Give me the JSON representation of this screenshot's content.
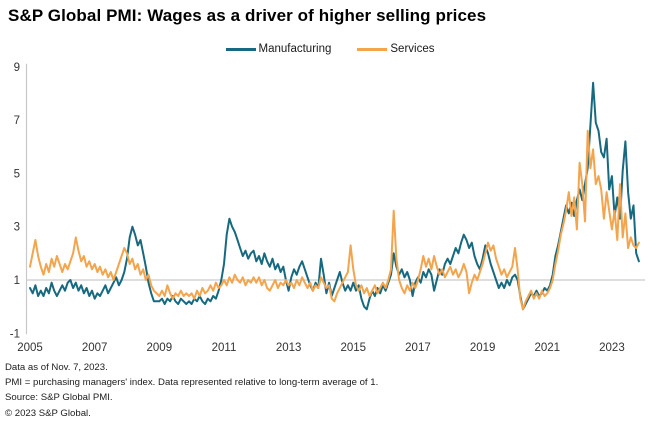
{
  "title": "S&P Global PMI: Wages as a driver of higher selling prices",
  "footnotes": [
    "Data as of Nov. 7, 2023.",
    "PMI =  purchasing managers' index. Data represented relative to long-term average of 1.",
    "Source: S&P Global PMI.",
    "© 2023 S&P Global."
  ],
  "colors": {
    "manufacturing": "#176980",
    "services": "#f4a44d",
    "grid": "#c9c9c9",
    "axis": "#c9c9c9",
    "tick_text": "#333333",
    "title_text": "#000000"
  },
  "chart_data": {
    "type": "line",
    "title": "S&P Global PMI: Wages as a driver of higher selling prices",
    "xlabel": "",
    "ylabel": "",
    "frequency": "monthly",
    "x_start": {
      "year": 2005,
      "month": 1
    },
    "x_end": {
      "year": 2023,
      "month": 11
    },
    "xticks": [
      2005,
      2007,
      2009,
      2011,
      2013,
      2015,
      2017,
      2019,
      2021,
      2023
    ],
    "yticks": [
      -1,
      1,
      3,
      5,
      7,
      9
    ],
    "ylim": [
      -1,
      9
    ],
    "grid": "single horizontal reference line at y = 1 (long-term average)",
    "reference_line_y": 1,
    "legend_position": "top-center",
    "series": [
      {
        "name": "Manufacturing",
        "color": "#176980",
        "values": [
          0.7,
          0.5,
          0.8,
          0.4,
          0.6,
          0.4,
          0.7,
          0.5,
          0.9,
          0.6,
          0.4,
          0.6,
          0.8,
          0.6,
          0.9,
          1.0,
          0.7,
          0.9,
          0.6,
          0.8,
          0.5,
          0.7,
          0.4,
          0.6,
          0.3,
          0.5,
          0.4,
          0.6,
          0.8,
          0.5,
          0.7,
          0.9,
          1.1,
          0.8,
          1.0,
          1.3,
          1.8,
          2.6,
          3.0,
          2.7,
          2.3,
          2.5,
          2.0,
          1.5,
          0.9,
          0.5,
          0.2,
          0.2,
          0.2,
          0.3,
          0.1,
          0.3,
          0.2,
          0.4,
          0.2,
          0.1,
          0.3,
          0.2,
          0.1,
          0.2,
          0.1,
          0.3,
          0.2,
          0.4,
          0.2,
          0.1,
          0.3,
          0.2,
          0.4,
          0.3,
          0.6,
          1.0,
          1.6,
          2.7,
          3.3,
          3.0,
          2.8,
          2.5,
          2.2,
          1.9,
          2.1,
          1.8,
          2.0,
          2.1,
          1.7,
          1.9,
          1.6,
          2.0,
          1.7,
          1.5,
          1.8,
          1.4,
          1.6,
          1.3,
          1.5,
          1.0,
          0.6,
          1.1,
          1.4,
          1.2,
          1.5,
          1.7,
          1.4,
          1.1,
          0.8,
          0.6,
          0.9,
          0.7,
          1.8,
          1.2,
          0.5,
          0.9,
          0.4,
          0.7,
          1.0,
          1.3,
          0.9,
          0.6,
          0.8,
          0.6,
          0.9,
          0.6,
          0.8,
          0.3,
          0.0,
          -0.1,
          0.3,
          0.6,
          0.4,
          0.7,
          0.5,
          0.8,
          0.6,
          0.9,
          1.2,
          2.0,
          1.5,
          1.2,
          1.4,
          1.1,
          1.3,
          1.0,
          0.4,
          0.9,
          1.1,
          0.9,
          1.3,
          1.1,
          1.4,
          1.2,
          0.6,
          1.0,
          1.4,
          1.2,
          1.6,
          1.8,
          1.6,
          1.9,
          2.2,
          2.0,
          2.4,
          2.7,
          2.5,
          2.2,
          2.4,
          1.9,
          1.6,
          1.4,
          1.8,
          2.3,
          2.0,
          1.6,
          1.3,
          1.0,
          0.7,
          0.9,
          0.7,
          1.0,
          0.8,
          1.1,
          1.2,
          1.0,
          0.4,
          -0.1,
          0.1,
          0.3,
          0.5,
          0.4,
          0.6,
          0.4,
          0.5,
          0.7,
          0.6,
          0.8,
          1.2,
          1.9,
          2.3,
          2.8,
          3.3,
          3.8,
          3.5,
          3.9,
          3.4,
          4.0,
          4.4,
          4.0,
          4.6,
          5.2,
          6.8,
          8.4,
          6.9,
          6.6,
          5.8,
          5.6,
          6.3,
          4.4,
          4.9,
          3.4,
          4.1,
          3.3,
          5.1,
          6.2,
          4.3,
          3.3,
          3.8,
          2.0,
          1.7
        ]
      },
      {
        "name": "Services",
        "color": "#f4a44d",
        "values": [
          1.5,
          2.0,
          2.5,
          1.9,
          1.5,
          1.2,
          1.6,
          1.3,
          1.8,
          1.5,
          1.9,
          1.6,
          1.3,
          1.6,
          1.4,
          1.7,
          2.0,
          2.6,
          2.1,
          1.7,
          1.9,
          1.5,
          1.7,
          1.4,
          1.6,
          1.3,
          1.5,
          1.2,
          1.4,
          1.1,
          1.3,
          1.0,
          1.3,
          1.6,
          1.9,
          2.2,
          2.0,
          1.6,
          1.8,
          1.4,
          1.6,
          1.2,
          1.4,
          1.0,
          1.2,
          0.8,
          0.6,
          0.5,
          0.4,
          0.6,
          0.4,
          0.8,
          0.5,
          0.3,
          0.5,
          0.4,
          0.6,
          0.4,
          0.5,
          0.4,
          0.5,
          0.3,
          0.6,
          0.4,
          0.7,
          0.5,
          0.6,
          0.8,
          0.6,
          0.9,
          0.7,
          0.8,
          1.0,
          0.8,
          1.1,
          0.9,
          1.2,
          1.0,
          0.9,
          1.1,
          0.8,
          1.0,
          0.9,
          1.1,
          0.9,
          1.1,
          0.8,
          1.0,
          0.7,
          0.6,
          0.8,
          1.0,
          0.7,
          0.9,
          0.8,
          1.0,
          0.8,
          0.9,
          0.7,
          1.0,
          0.8,
          1.1,
          0.9,
          0.7,
          0.9,
          0.6,
          0.8,
          0.7,
          1.1,
          0.9,
          0.7,
          0.8,
          0.3,
          0.2,
          0.5,
          0.7,
          0.9,
          1.1,
          1.3,
          2.3,
          1.4,
          0.8,
          0.6,
          0.8,
          0.5,
          0.7,
          0.4,
          0.6,
          0.8,
          0.5,
          0.7,
          0.9,
          0.7,
          1.0,
          1.4,
          3.6,
          1.8,
          1.0,
          0.7,
          0.5,
          0.8,
          0.6,
          0.9,
          0.7,
          1.0,
          1.4,
          1.9,
          1.5,
          1.8,
          1.4,
          1.9,
          1.5,
          1.2,
          1.4,
          1.1,
          1.3,
          1.5,
          1.2,
          1.4,
          1.1,
          1.3,
          1.6,
          1.3,
          0.5,
          0.9,
          1.2,
          1.0,
          1.3,
          1.6,
          2.0,
          2.4,
          2.1,
          2.3,
          1.8,
          1.5,
          1.2,
          1.4,
          1.1,
          1.3,
          1.5,
          2.2,
          1.4,
          0.3,
          -0.1,
          0.2,
          0.4,
          0.6,
          0.3,
          0.5,
          0.3,
          0.6,
          0.4,
          0.5,
          0.7,
          1.0,
          1.6,
          2.1,
          2.7,
          3.1,
          3.6,
          4.3,
          3.4,
          4.1,
          2.9,
          5.4,
          4.6,
          3.2,
          6.6,
          5.2,
          5.9,
          4.6,
          4.9,
          4.4,
          3.3,
          4.3,
          3.6,
          2.9,
          3.6,
          2.5,
          4.6,
          2.6,
          3.5,
          2.2,
          2.6,
          2.3,
          2.2,
          2.4
        ]
      }
    ]
  }
}
